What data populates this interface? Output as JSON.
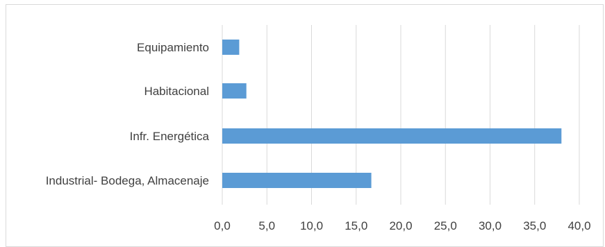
{
  "chart_data": {
    "type": "bar",
    "orientation": "horizontal",
    "categories": [
      "Equipamiento",
      "Habitacional",
      "Infr. Energética",
      "Industrial- Bodega, Almacenaje"
    ],
    "values": [
      1.9,
      2.7,
      38.0,
      16.7
    ],
    "xlim": [
      0,
      40
    ],
    "xticks": [
      "0,0",
      "5,0",
      "10,0",
      "15,0",
      "20,0",
      "25,0",
      "30,0",
      "35,0",
      "40,0"
    ],
    "grid": true,
    "bar_color": "#5b9bd5",
    "grid_color": "#d9d9d9",
    "title": "",
    "xlabel": "",
    "ylabel": ""
  }
}
